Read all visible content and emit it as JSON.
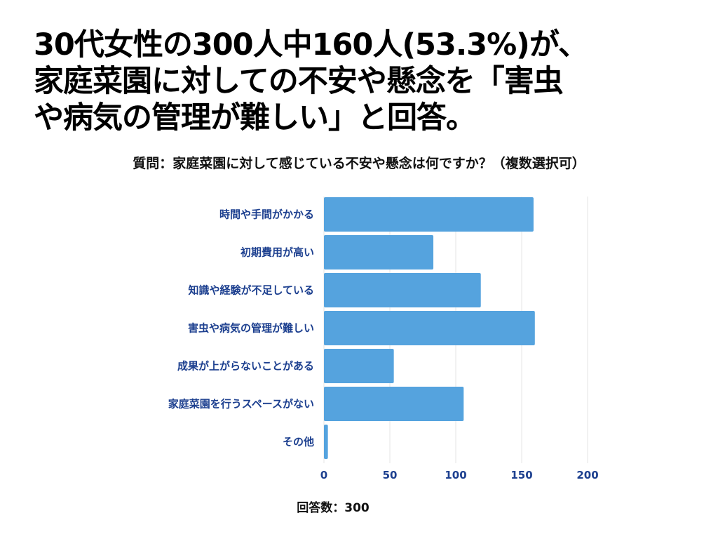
{
  "headline": {
    "lines": [
      "30代女性の300人中160人(53.3%)が、",
      "家庭菜園に対しての不安や懸念を「害虫",
      "や病気の管理が難しい」と回答。"
    ]
  },
  "question": "質問：家庭菜園に対して感じている不安や懸念は何ですか？（複数選択可）",
  "footer": "回答数：300",
  "colors": {
    "bar": "#55a3de",
    "label": "#1c3f8f",
    "grid": "#e6e6e6"
  },
  "chart_data": {
    "type": "bar",
    "orientation": "horizontal",
    "categories": [
      "時間や手間がかかる",
      "初期費用が高い",
      "知識や経験が不足している",
      "害虫や病気の管理が難しい",
      "成果が上がらないことがある",
      "家庭菜園を行うスペースがない",
      "その他"
    ],
    "values": [
      159,
      83,
      119,
      160,
      53,
      106,
      3
    ],
    "xlim": [
      0,
      200
    ],
    "xticks": [
      0,
      50,
      100,
      150,
      200
    ],
    "grid": true,
    "legend": "none"
  }
}
